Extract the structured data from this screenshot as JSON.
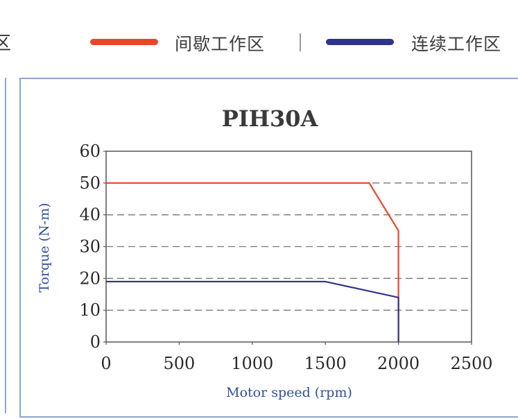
{
  "legend": {
    "left_cut_glyph": "区",
    "items": [
      {
        "label": "间歇工作区",
        "color": "#e8462c"
      },
      {
        "label": "连续工作区",
        "color": "#2e3585"
      }
    ]
  },
  "chart_data": {
    "type": "line",
    "title": "PIH30A",
    "xlabel": "Motor speed (rpm)",
    "ylabel": "Torque (N-m)",
    "xlim": [
      0,
      2500
    ],
    "ylim": [
      0,
      60
    ],
    "xticks": [
      0,
      500,
      1000,
      1500,
      2000,
      2500
    ],
    "yticks": [
      0,
      10,
      20,
      30,
      40,
      50,
      60
    ],
    "grid": "horizontal dashed",
    "series": [
      {
        "name": "间歇工作区",
        "color": "#e8462c",
        "x": [
          0,
          1800,
          2000,
          2000
        ],
        "y": [
          50,
          50,
          35,
          0
        ]
      },
      {
        "name": "连续工作区",
        "color": "#2e3585",
        "x": [
          0,
          1500,
          2000,
          2000
        ],
        "y": [
          19,
          19,
          14,
          0
        ]
      }
    ]
  }
}
